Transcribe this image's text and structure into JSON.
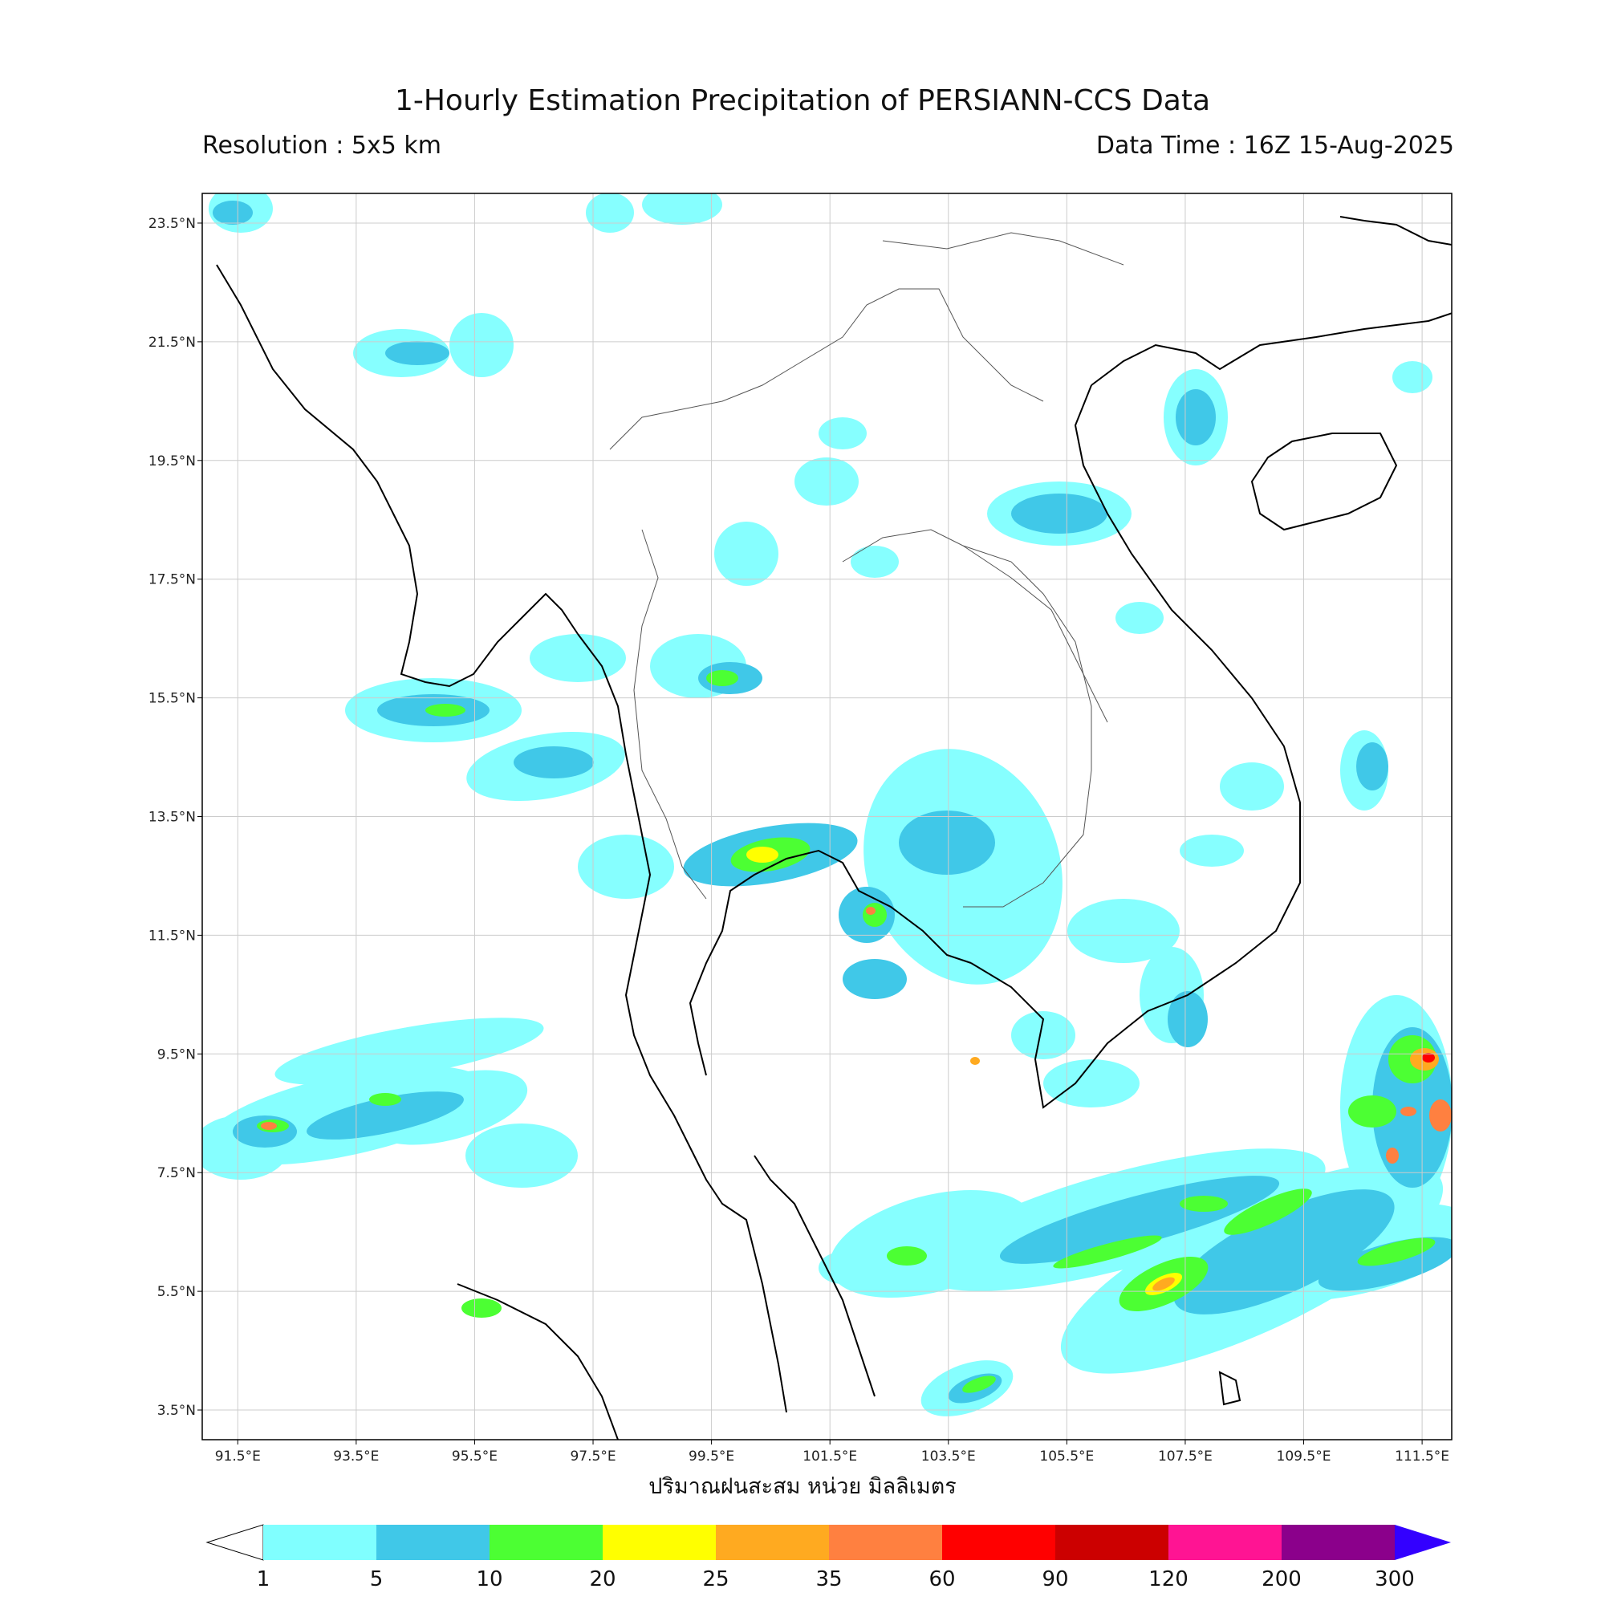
{
  "title": "1-Hourly Estimation Precipitation of PERSIANN-CCS Data",
  "resolution": "Resolution : 5x5 km",
  "data_time": "Data Time : 16Z 15-Aug-2025",
  "xaxis_title": "ปริมาณฝนสะสม หน่วย มิลลิเมตร",
  "lon_ticks": [
    "91.5°E",
    "93.5°E",
    "95.5°E",
    "97.5°E",
    "99.5°E",
    "101.5°E",
    "103.5°E",
    "105.5°E",
    "107.5°E",
    "109.5°E",
    "111.5°E"
  ],
  "lat_ticks": [
    "23.5°N",
    "21.5°N",
    "19.5°N",
    "17.5°N",
    "15.5°N",
    "13.5°N",
    "11.5°N",
    "9.5°N",
    "7.5°N",
    "5.5°N",
    "3.5°N"
  ],
  "lon_values": [
    91.5,
    93.5,
    95.5,
    97.5,
    99.5,
    101.5,
    103.5,
    105.5,
    107.5,
    109.5,
    111.5
  ],
  "lat_values": [
    23.5,
    21.5,
    19.5,
    17.5,
    15.5,
    13.5,
    11.5,
    9.5,
    7.5,
    5.5,
    3.5
  ],
  "map_extent": {
    "lon_min": 90.9,
    "lon_max": 112.0,
    "lat_min": 3.0,
    "lat_max": 24.0
  },
  "colorbar": {
    "labels": [
      "1",
      "5",
      "10",
      "20",
      "25",
      "35",
      "60",
      "90",
      "120",
      "200",
      "300"
    ],
    "colors": [
      "#80ffff",
      "#40c8e8",
      "#4cff33",
      "#ffff00",
      "#ffaa20",
      "#ff8040",
      "#ff0000",
      "#cc0000",
      "#ff1493",
      "#8b008b"
    ],
    "extend_low_color": "#ffffff",
    "extend_high_color": "#3300ff"
  },
  "rain_cells": [
    {
      "lon": 100.2,
      "lat": 12.8,
      "intensity": 25
    },
    {
      "lon": 102.8,
      "lat": 12.1,
      "intensity": 20
    },
    {
      "lon": 111.6,
      "lat": 9.5,
      "intensity": 90
    },
    {
      "lon": 111.8,
      "lat": 8.7,
      "intensity": 35
    },
    {
      "lon": 107.3,
      "lat": 5.6,
      "intensity": 35
    },
    {
      "lon": 94.9,
      "lat": 15.2,
      "intensity": 10
    },
    {
      "lon": 92.3,
      "lat": 8.7,
      "intensity": 35
    },
    {
      "lon": 110.8,
      "lat": 6.0,
      "intensity": 10
    },
    {
      "lon": 103.8,
      "lat": 4.0,
      "intensity": 10
    },
    {
      "lon": 95.3,
      "lat": 5.1,
      "intensity": 10
    }
  ]
}
